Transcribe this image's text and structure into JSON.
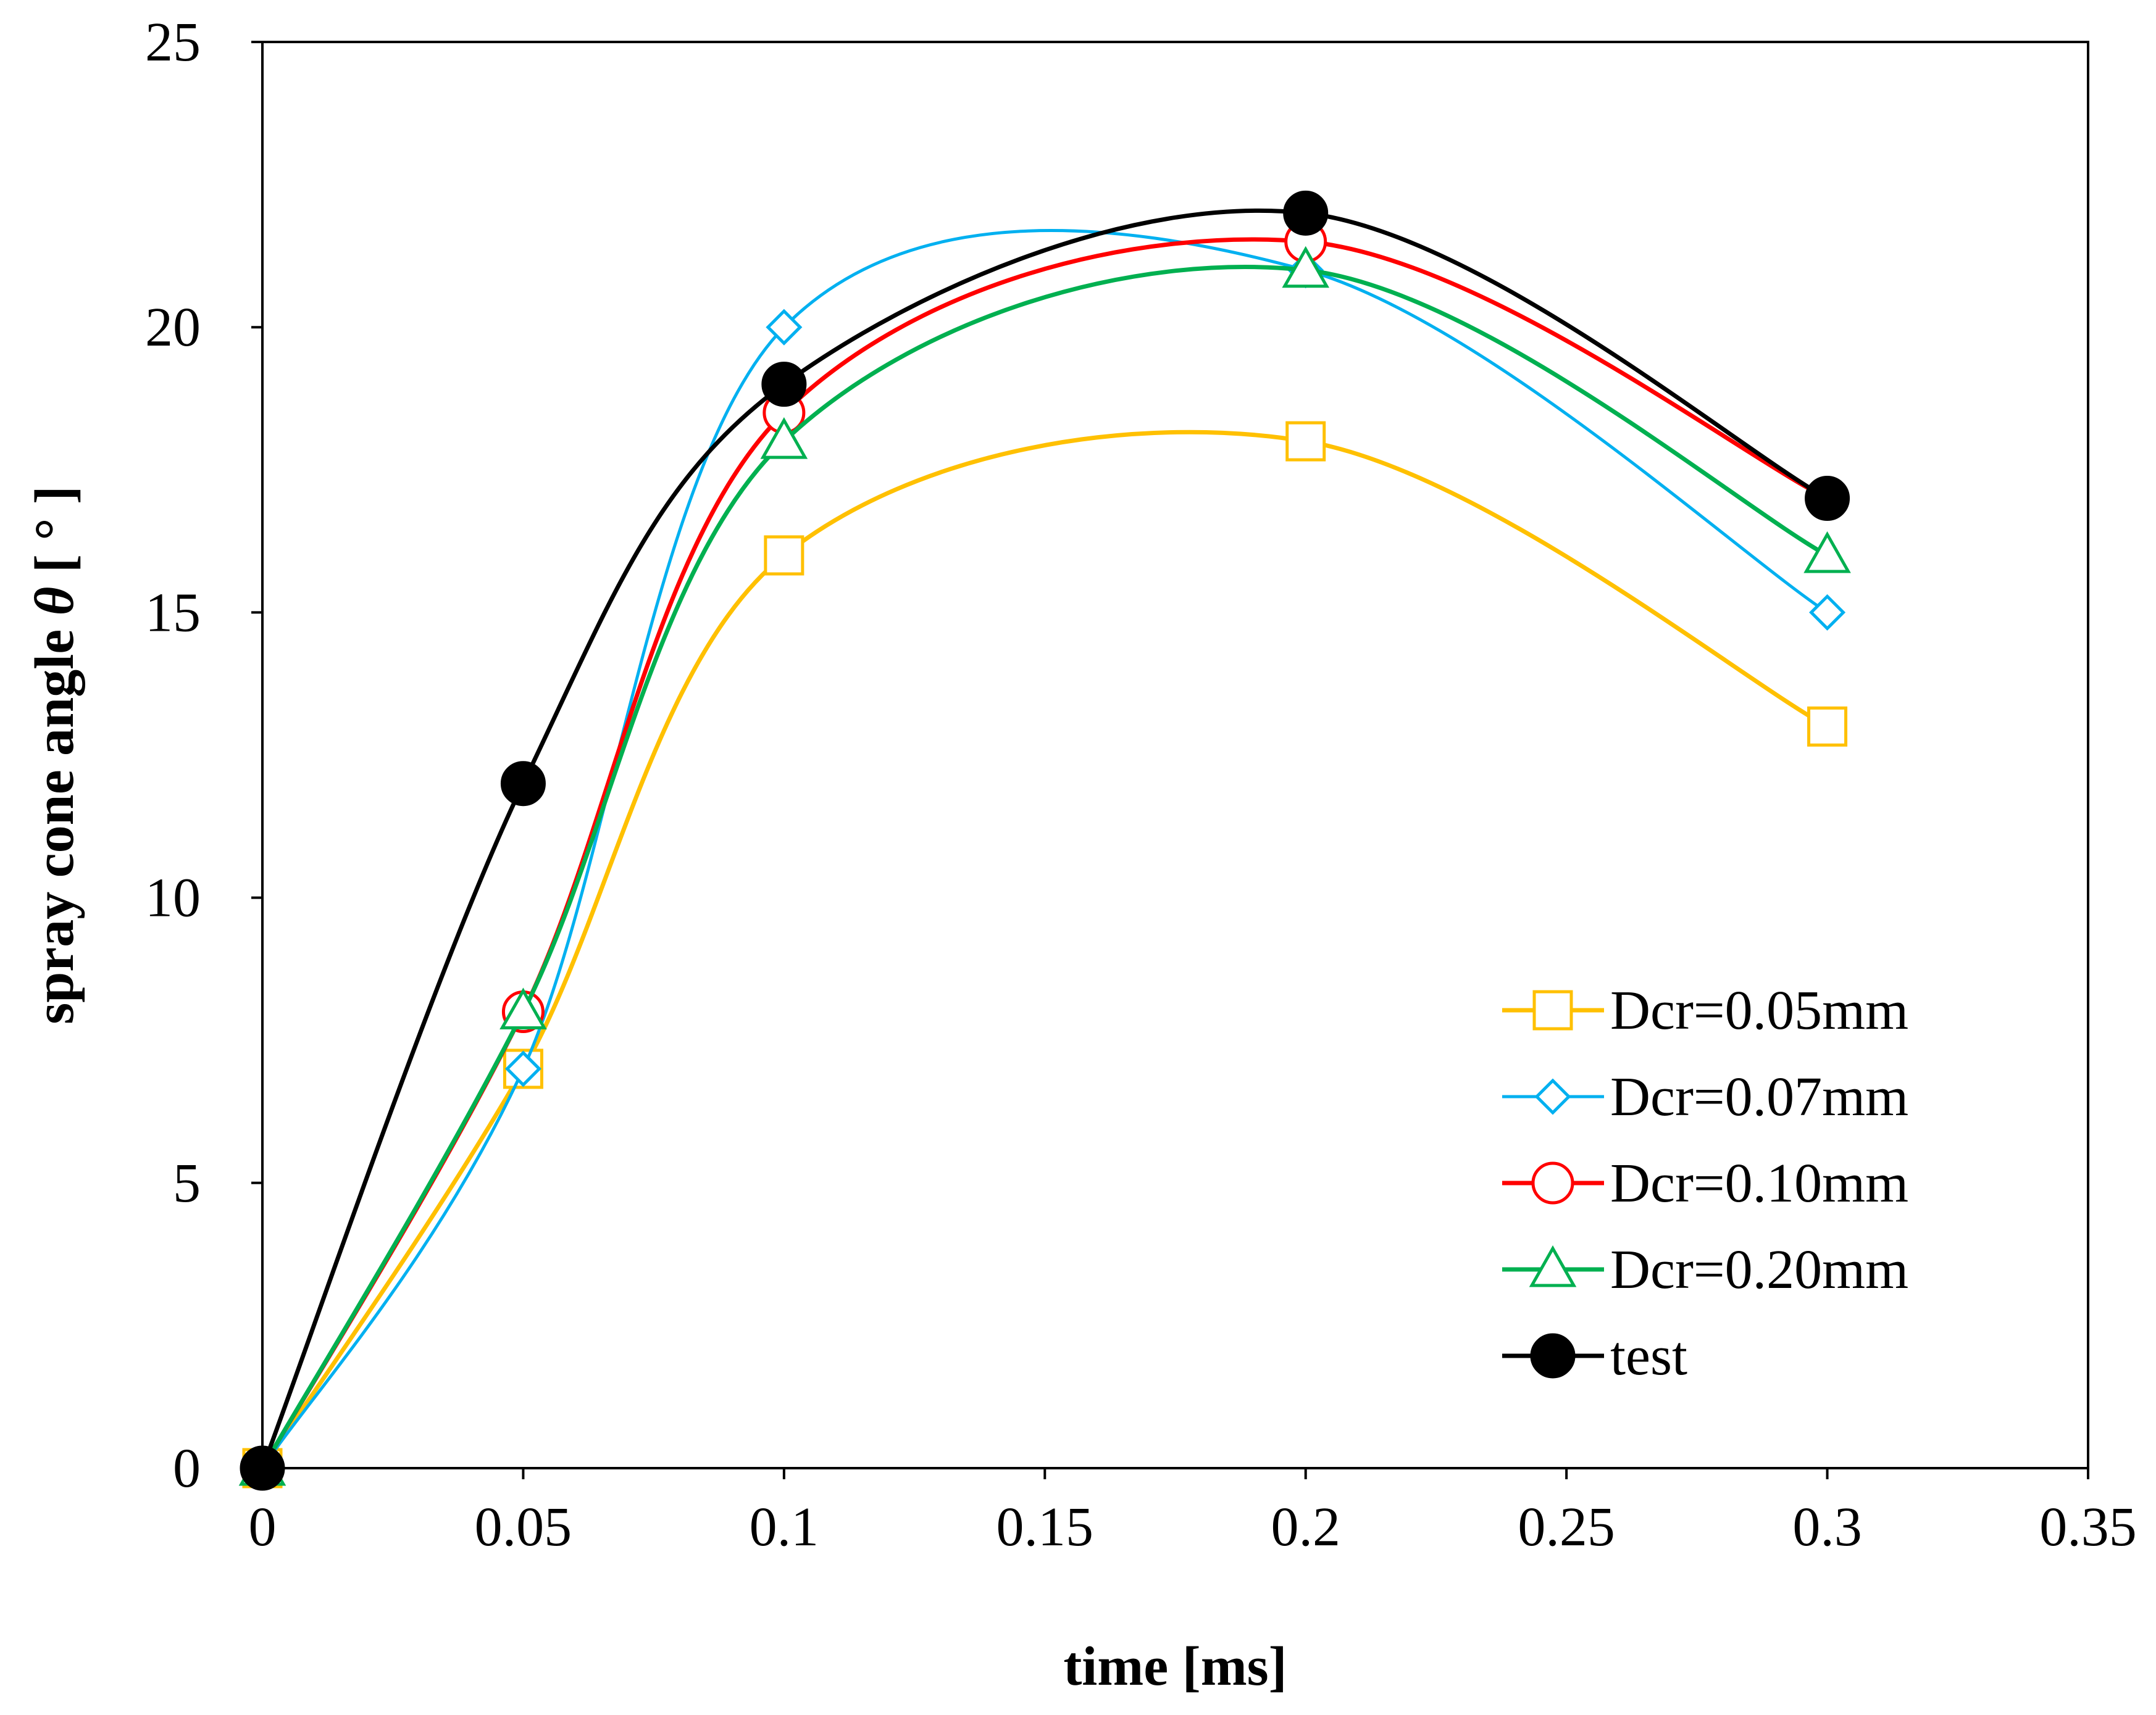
{
  "chart_data": {
    "type": "line",
    "smooth": true,
    "title": "",
    "xlabel": "time [ms]",
    "ylabel_prefix": "spray cone angle ",
    "ylabel_symbol": "θ",
    "ylabel_suffix": " [ ° ]",
    "xlim": [
      0,
      0.35
    ],
    "ylim": [
      0,
      25
    ],
    "xticks": [
      "0",
      "0.05",
      "0.1",
      "0.15",
      "0.2",
      "0.25",
      "0.3",
      "0.35"
    ],
    "xtick_values": [
      0,
      0.05,
      0.1,
      0.15,
      0.2,
      0.25,
      0.3,
      0.35
    ],
    "yticks": [
      "0",
      "5",
      "10",
      "15",
      "20",
      "25"
    ],
    "ytick_values": [
      0,
      5,
      10,
      15,
      20,
      25
    ],
    "legend_position": "lower-right",
    "x": [
      0,
      0.05,
      0.1,
      0.2,
      0.3
    ],
    "series": [
      {
        "name": "Dcr=0.05mm",
        "color": "#FFC000",
        "marker": "square",
        "filled": false,
        "values": [
          0,
          7,
          16,
          18,
          13
        ]
      },
      {
        "name": "Dcr=0.07mm",
        "color": "#00B0F0",
        "marker": "diamond",
        "filled": false,
        "values": [
          0,
          7,
          20,
          21,
          15
        ]
      },
      {
        "name": "Dcr=0.10mm",
        "color": "#FF0000",
        "marker": "circle",
        "filled": false,
        "values": [
          0,
          8,
          18.5,
          21.5,
          17
        ]
      },
      {
        "name": "Dcr=0.20mm",
        "color": "#00B050",
        "marker": "triangle",
        "filled": false,
        "values": [
          0,
          8,
          18,
          21,
          16
        ]
      },
      {
        "name": "test",
        "color": "#000000",
        "marker": "circle",
        "filled": true,
        "values": [
          0,
          12,
          19,
          22,
          17
        ]
      }
    ]
  }
}
